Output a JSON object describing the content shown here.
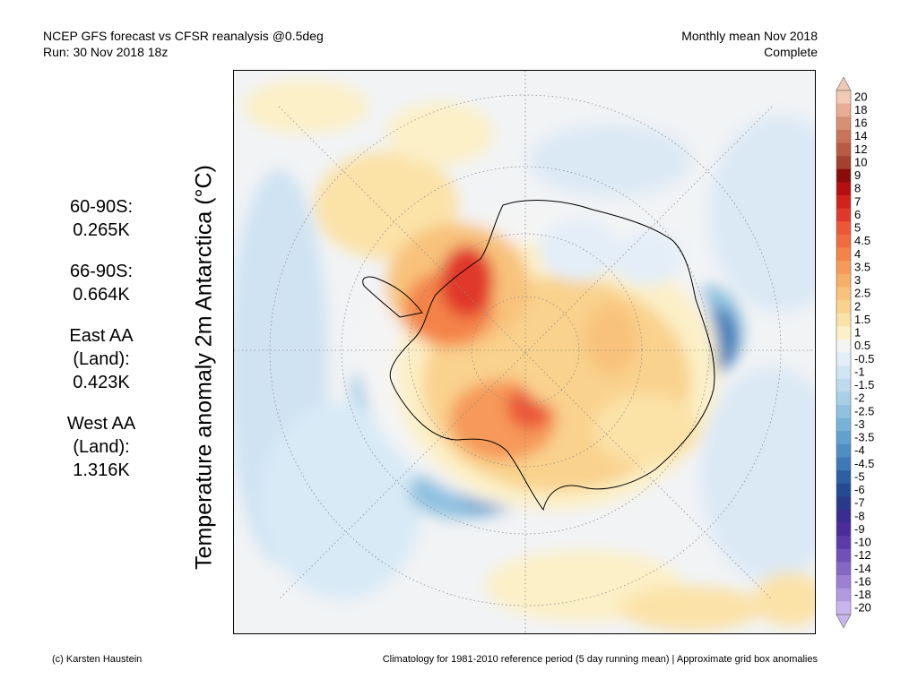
{
  "header": {
    "left_line1": "NCEP GFS forecast vs CFSR reanalysis @0.5deg",
    "left_line2": "Run: 30 Nov 2018 18z",
    "right_line1": "Monthly mean Nov 2018",
    "right_line2": "Complete"
  },
  "map_title": "Temperature anomaly 2m Antarctica (°C)",
  "stats": [
    {
      "label": "60-90S:",
      "value": "0.265K"
    },
    {
      "label": "66-90S:",
      "value": "0.664K"
    },
    {
      "label": "East AA\n(Land):",
      "value": "0.423K"
    },
    {
      "label": "West AA\n(Land):",
      "value": "1.316K"
    }
  ],
  "colorbar": {
    "labels": [
      "20",
      "18",
      "16",
      "14",
      "12",
      "10",
      "9",
      "8",
      "7",
      "6",
      "5",
      "4.5",
      "4",
      "3.5",
      "3",
      "2.5",
      "2",
      "1.5",
      "1",
      "0.5",
      "-0.5",
      "-1",
      "-1.5",
      "-2",
      "-2.5",
      "-3",
      "-3.5",
      "-4",
      "-4.5",
      "-5",
      "-6",
      "-7",
      "-8",
      "-9",
      "-10",
      "-12",
      "-14",
      "-16",
      "-18",
      "-20"
    ],
    "colors": [
      "#f2c9b4",
      "#e8ad93",
      "#d98f74",
      "#c97459",
      "#b95a42",
      "#a4402f",
      "#8c0b0b",
      "#b50f12",
      "#d1221c",
      "#e0382a",
      "#ec5738",
      "#f06c3f",
      "#f48349",
      "#f6995a",
      "#f7ae69",
      "#f8c27b",
      "#f9d28d",
      "#fbe2a7",
      "#fcf0c7",
      "#f4f4f4",
      "#e3eef8",
      "#d1e6f4",
      "#bddbef",
      "#a8cfe8",
      "#90c1e0",
      "#78b2d8",
      "#62a1cf",
      "#4f8ec3",
      "#3d79b6",
      "#2d5fa5",
      "#244a93",
      "#2a3a8a",
      "#3a2d8f",
      "#4b2c9b",
      "#5d3aa8",
      "#7150b8",
      "#8667c6",
      "#9b80d3",
      "#b19ae0",
      "#c8b6ee"
    ],
    "top_arrow_color": "#f2c9b4",
    "bottom_arrow_color": "#c8b6ee"
  },
  "footer": {
    "left": "(c) Karsten Haustein",
    "right": "Climatology for 1981-2010 reference period (5 day running mean) | Approximate grid box anomalies"
  }
}
